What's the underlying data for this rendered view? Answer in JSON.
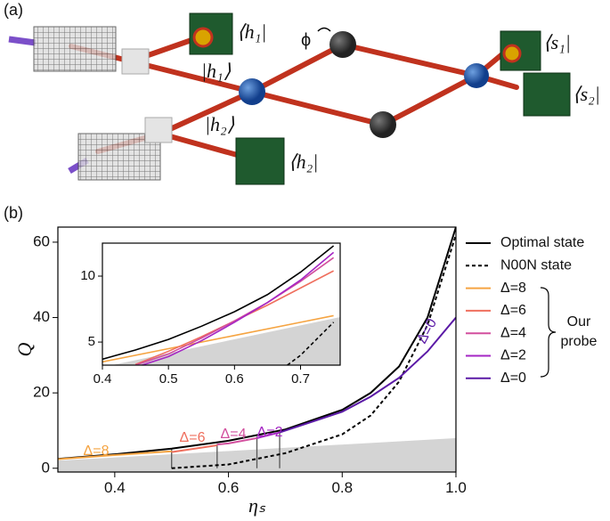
{
  "diagram": {
    "panel_label": "(a)",
    "h1_bra": "⟨h₁|",
    "h1_ket": "|h₁⟩",
    "h2_ket": "|h₂⟩",
    "h2_bra": "⟨h₂|",
    "s1_bra": "⟨s₁|",
    "s2_bra": "⟨s₂|",
    "phase": "ϕ"
  },
  "panel_b_label": "(b)",
  "chart_data": [
    {
      "type": "line",
      "xlabel": "ηₛ",
      "ylabel": "Q",
      "xlim": [
        0.3,
        1.0
      ],
      "ylim": [
        -1,
        64
      ],
      "xticks": [
        0.4,
        0.6,
        0.8,
        {
          "value": 1,
          "label": "1.0"
        }
      ],
      "yticks": [
        0,
        20,
        40,
        60
      ],
      "shade": {
        "color": "#d4d4d4",
        "x": [
          0.3,
          1.0
        ],
        "values": [
          2,
          8
        ]
      },
      "vlines": {
        "color": "#555555",
        "x": [
          0.5,
          0.58,
          0.65,
          0.69
        ],
        "top": [
          5.2,
          6.4,
          8.4,
          9.5
        ]
      },
      "series": [
        {
          "name": "Optimal state",
          "color": "#000000",
          "dash": false,
          "x": [
            0.3,
            0.4,
            0.5,
            0.6,
            0.7,
            0.8,
            0.85,
            0.9,
            0.95,
            1.0
          ],
          "values": [
            2.5,
            3.7,
            5.2,
            7.3,
            10.3,
            15.5,
            20,
            27,
            40,
            64
          ]
        },
        {
          "name": "N00N state",
          "color": "#000000",
          "dash": true,
          "x": [
            0.5,
            0.6,
            0.7,
            0.8,
            0.85,
            0.9,
            0.95,
            1.0
          ],
          "values": [
            0,
            1,
            4,
            9,
            14,
            23,
            38,
            62
          ]
        },
        {
          "name": "Δ=8",
          "color": "#f5a442",
          "dash": false,
          "x": [
            0.3,
            0.4,
            0.5
          ],
          "values": [
            2.4,
            3.5,
            4.5
          ]
        },
        {
          "name": "Δ=6",
          "color": "#ef6f5e",
          "dash": false,
          "x": [
            0.5,
            0.55,
            0.58
          ],
          "values": [
            4.3,
            5.4,
            6.1
          ]
        },
        {
          "name": "Δ=4",
          "color": "#d24f9e",
          "dash": false,
          "x": [
            0.58,
            0.6,
            0.65
          ],
          "values": [
            6.3,
            6.6,
            8.0
          ]
        },
        {
          "name": "Δ=2",
          "color": "#a526c4",
          "dash": false,
          "x": [
            0.65,
            0.69
          ],
          "values": [
            8.0,
            9.5
          ]
        },
        {
          "name": "Δ=0",
          "color": "#5b1aa6",
          "dash": false,
          "x": [
            0.69,
            0.75,
            0.8,
            0.85,
            0.9,
            0.95,
            1.0
          ],
          "values": [
            9.5,
            12.5,
            15,
            19,
            24,
            31,
            40
          ]
        }
      ],
      "legend_group_label": [
        "Our",
        "probe"
      ]
    },
    {
      "type": "line",
      "xlim": [
        0.4,
        0.76
      ],
      "ylim": [
        3.25,
        12.5
      ],
      "xticks": [
        0.4,
        0.5,
        0.6,
        0.7
      ],
      "yticks": [
        5,
        10
      ],
      "shade": {
        "color": "#d4d4d4",
        "x": [
          0.4,
          0.76
        ],
        "values": [
          3.1,
          6.9
        ]
      },
      "series": [
        {
          "name": "Optimal state",
          "color": "#000000",
          "dash": false,
          "x": [
            0.4,
            0.45,
            0.5,
            0.55,
            0.6,
            0.65,
            0.7,
            0.75
          ],
          "values": [
            3.7,
            4.4,
            5.2,
            6.2,
            7.3,
            8.6,
            10.3,
            12.3
          ]
        },
        {
          "name": "N00N state",
          "color": "#000000",
          "dash": true,
          "x": [
            0.68,
            0.7,
            0.75
          ],
          "values": [
            3.25,
            4.0,
            6.5
          ]
        },
        {
          "name": "Δ=8",
          "color": "#f5a442",
          "dash": false,
          "x": [
            0.4,
            0.5,
            0.6,
            0.7,
            0.75
          ],
          "values": [
            3.5,
            4.5,
            5.5,
            6.5,
            7.0
          ]
        },
        {
          "name": "Δ=6",
          "color": "#ef6f5e",
          "dash": false,
          "x": [
            0.45,
            0.5,
            0.55,
            0.6,
            0.65,
            0.7,
            0.75
          ],
          "values": [
            3.3,
            4.3,
            5.4,
            6.6,
            7.8,
            9.1,
            10.4
          ]
        },
        {
          "name": "Δ=4",
          "color": "#d24f9e",
          "dash": false,
          "x": [
            0.45,
            0.5,
            0.55,
            0.6,
            0.65,
            0.7,
            0.75
          ],
          "values": [
            3.25,
            4.1,
            5.3,
            6.6,
            8.0,
            9.6,
            11.4
          ]
        },
        {
          "name": "Δ=2",
          "color": "#a526c4",
          "dash": false,
          "x": [
            0.46,
            0.5,
            0.55,
            0.6,
            0.65,
            0.7,
            0.75
          ],
          "values": [
            3.25,
            3.9,
            5.1,
            6.5,
            8.0,
            9.7,
            11.8
          ]
        }
      ]
    }
  ]
}
